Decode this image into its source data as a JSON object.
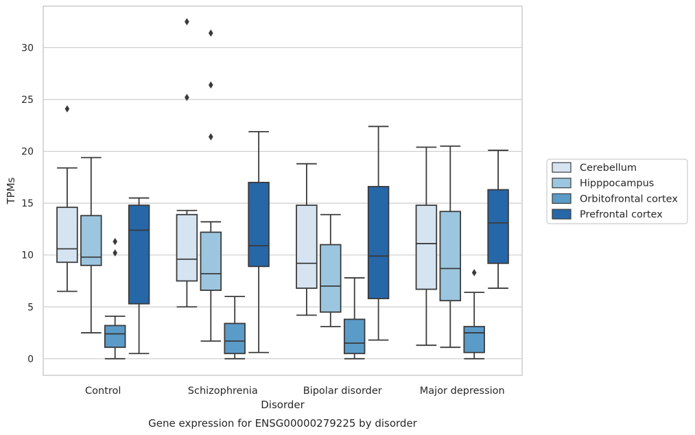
{
  "chart_data": {
    "type": "box",
    "title": "",
    "caption": "Gene expression for ENSG00000279225 by disorder",
    "xlabel": "Disorder",
    "ylabel": "TPMs",
    "ylim": [
      -1.6,
      34
    ],
    "yticks": [
      0,
      5,
      10,
      15,
      20,
      25,
      30
    ],
    "grid": "horizontal",
    "legend_position": "right",
    "categories": [
      "Control",
      "Schizophrenia",
      "Bipolar disorder",
      "Major depression"
    ],
    "series": [
      {
        "name": "Cerebellum",
        "color": "#d6e4f2",
        "boxes": [
          {
            "whisker_low": 6.5,
            "q1": 9.3,
            "median": 10.6,
            "q3": 14.6,
            "whisker_high": 18.4,
            "outliers": [
              24.1
            ]
          },
          {
            "whisker_low": 5.0,
            "q1": 7.5,
            "median": 9.6,
            "q3": 13.9,
            "whisker_high": 14.3,
            "outliers": [
              25.2,
              32.5
            ]
          },
          {
            "whisker_low": 4.2,
            "q1": 6.8,
            "median": 9.2,
            "q3": 14.8,
            "whisker_high": 18.8,
            "outliers": []
          },
          {
            "whisker_low": 1.3,
            "q1": 6.7,
            "median": 11.1,
            "q3": 14.8,
            "whisker_high": 20.4,
            "outliers": []
          }
        ]
      },
      {
        "name": "Hipppocampus",
        "color": "#9cc6df",
        "boxes": [
          {
            "whisker_low": 2.5,
            "q1": 9.0,
            "median": 9.8,
            "q3": 13.8,
            "whisker_high": 19.4,
            "outliers": []
          },
          {
            "whisker_low": 1.7,
            "q1": 6.6,
            "median": 8.2,
            "q3": 12.2,
            "whisker_high": 13.2,
            "outliers": [
              21.4,
              26.4,
              31.4
            ]
          },
          {
            "whisker_low": 3.1,
            "q1": 4.5,
            "median": 7.0,
            "q3": 11.0,
            "whisker_high": 13.9,
            "outliers": []
          },
          {
            "whisker_low": 1.1,
            "q1": 5.6,
            "median": 8.7,
            "q3": 14.2,
            "whisker_high": 20.5,
            "outliers": []
          }
        ]
      },
      {
        "name": "Orbitofrontal cortex",
        "color": "#5b9bc8",
        "boxes": [
          {
            "whisker_low": 0.0,
            "q1": 1.1,
            "median": 2.4,
            "q3": 3.2,
            "whisker_high": 4.1,
            "outliers": [
              10.2,
              11.3
            ]
          },
          {
            "whisker_low": 0.0,
            "q1": 0.5,
            "median": 1.7,
            "q3": 3.4,
            "whisker_high": 6.0,
            "outliers": []
          },
          {
            "whisker_low": 0.0,
            "q1": 0.5,
            "median": 1.5,
            "q3": 3.8,
            "whisker_high": 7.8,
            "outliers": []
          },
          {
            "whisker_low": 0.0,
            "q1": 0.6,
            "median": 2.5,
            "q3": 3.1,
            "whisker_high": 6.4,
            "outliers": [
              8.3
            ]
          }
        ]
      },
      {
        "name": "Prefrontal cortex",
        "color": "#2667a8",
        "boxes": [
          {
            "whisker_low": 0.5,
            "q1": 5.3,
            "median": 12.4,
            "q3": 14.8,
            "whisker_high": 15.5,
            "outliers": []
          },
          {
            "whisker_low": 0.6,
            "q1": 8.9,
            "median": 10.9,
            "q3": 17.0,
            "whisker_high": 21.9,
            "outliers": []
          },
          {
            "whisker_low": 1.8,
            "q1": 5.8,
            "median": 9.9,
            "q3": 16.6,
            "whisker_high": 22.4,
            "outliers": []
          },
          {
            "whisker_low": 6.8,
            "q1": 9.2,
            "median": 13.1,
            "q3": 16.3,
            "whisker_high": 20.1,
            "outliers": []
          }
        ]
      }
    ]
  }
}
